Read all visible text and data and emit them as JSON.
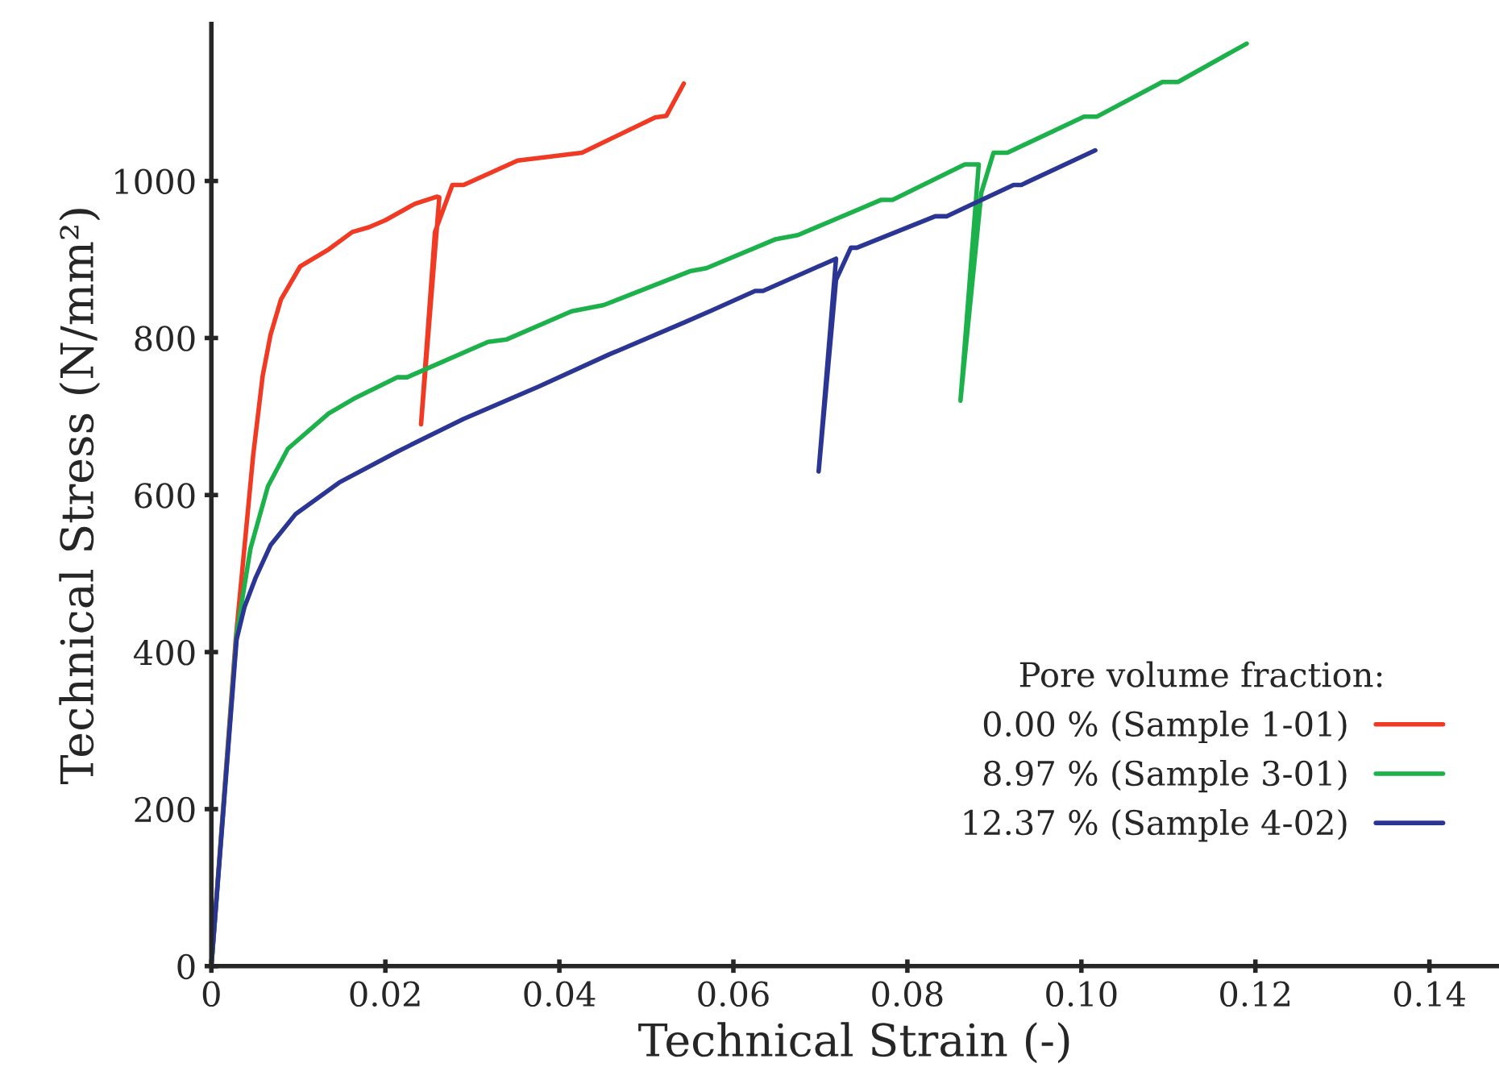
{
  "chart_data": {
    "type": "line",
    "xlabel": "Technical Strain (-)",
    "ylabel": "Technical Stress (N/mm²)",
    "legend_title": "Pore volume fraction:",
    "legend": "bottom right",
    "grid": false,
    "xlim": [
      0,
      0.148
    ],
    "ylim": [
      0,
      1200
    ],
    "xticks": [
      0,
      0.02,
      0.04,
      0.06,
      0.08,
      {
        "value": 0.1,
        "label": "0.10"
      },
      0.12,
      0.14
    ],
    "yticks": [
      0,
      200,
      400,
      600,
      800,
      1000
    ],
    "series": [
      {
        "name": "0.00 % (Sample 1-01)",
        "color": "#f03a24",
        "x": [
          0,
          0.0028,
          0.0048,
          0.0059,
          0.0068,
          0.008,
          0.0102,
          0.0135,
          0.0162,
          0.0181,
          0.02,
          0.0234,
          0.0259,
          0.0262,
          0.0241,
          0.0257,
          0.0277,
          0.029,
          0.0352,
          0.0426,
          0.051,
          0.0523,
          0.0543
        ],
        "values": [
          0,
          416,
          650,
          752,
          804,
          849,
          891,
          913,
          935,
          941,
          950,
          971,
          980,
          979,
          690,
          935,
          995,
          995,
          1026,
          1036,
          1081,
          1083,
          1124
        ]
      },
      {
        "name": "8.97 % (Sample 3-01)",
        "color": "#1db14b",
        "x": [
          0,
          0.0029,
          0.0045,
          0.0065,
          0.0088,
          0.0135,
          0.0166,
          0.0214,
          0.0225,
          0.0318,
          0.0339,
          0.0414,
          0.0451,
          0.055,
          0.0569,
          0.0649,
          0.0674,
          0.077,
          0.0783,
          0.0866,
          0.0882,
          0.0861,
          0.0885,
          0.0899,
          0.0915,
          0.1003,
          0.1018,
          0.1093,
          0.1111,
          0.119
        ],
        "values": [
          0,
          423,
          532,
          611,
          659,
          704,
          724,
          750,
          750,
          795,
          798,
          834,
          842,
          885,
          889,
          926,
          931,
          976,
          976,
          1021,
          1021,
          720,
          985,
          1036,
          1036,
          1082,
          1082,
          1126,
          1126,
          1175
        ]
      },
      {
        "name": "12.37 % (Sample 4-02)",
        "color": "#2b3694",
        "x": [
          0,
          0.0029,
          0.0038,
          0.0051,
          0.0068,
          0.0097,
          0.0147,
          0.0215,
          0.029,
          0.0376,
          0.0457,
          0.0544,
          0.0575,
          0.0625,
          0.0634,
          0.0718,
          0.0698,
          0.0718,
          0.0735,
          0.0742,
          0.0832,
          0.0845,
          0.0922,
          0.0931,
          0.1016
        ],
        "values": [
          0,
          416,
          457,
          495,
          536,
          576,
          616,
          656,
          697,
          738,
          779,
          820,
          835,
          860,
          860,
          901,
          630,
          874,
          915,
          915,
          955,
          955,
          995,
          995,
          1039
        ]
      }
    ]
  }
}
